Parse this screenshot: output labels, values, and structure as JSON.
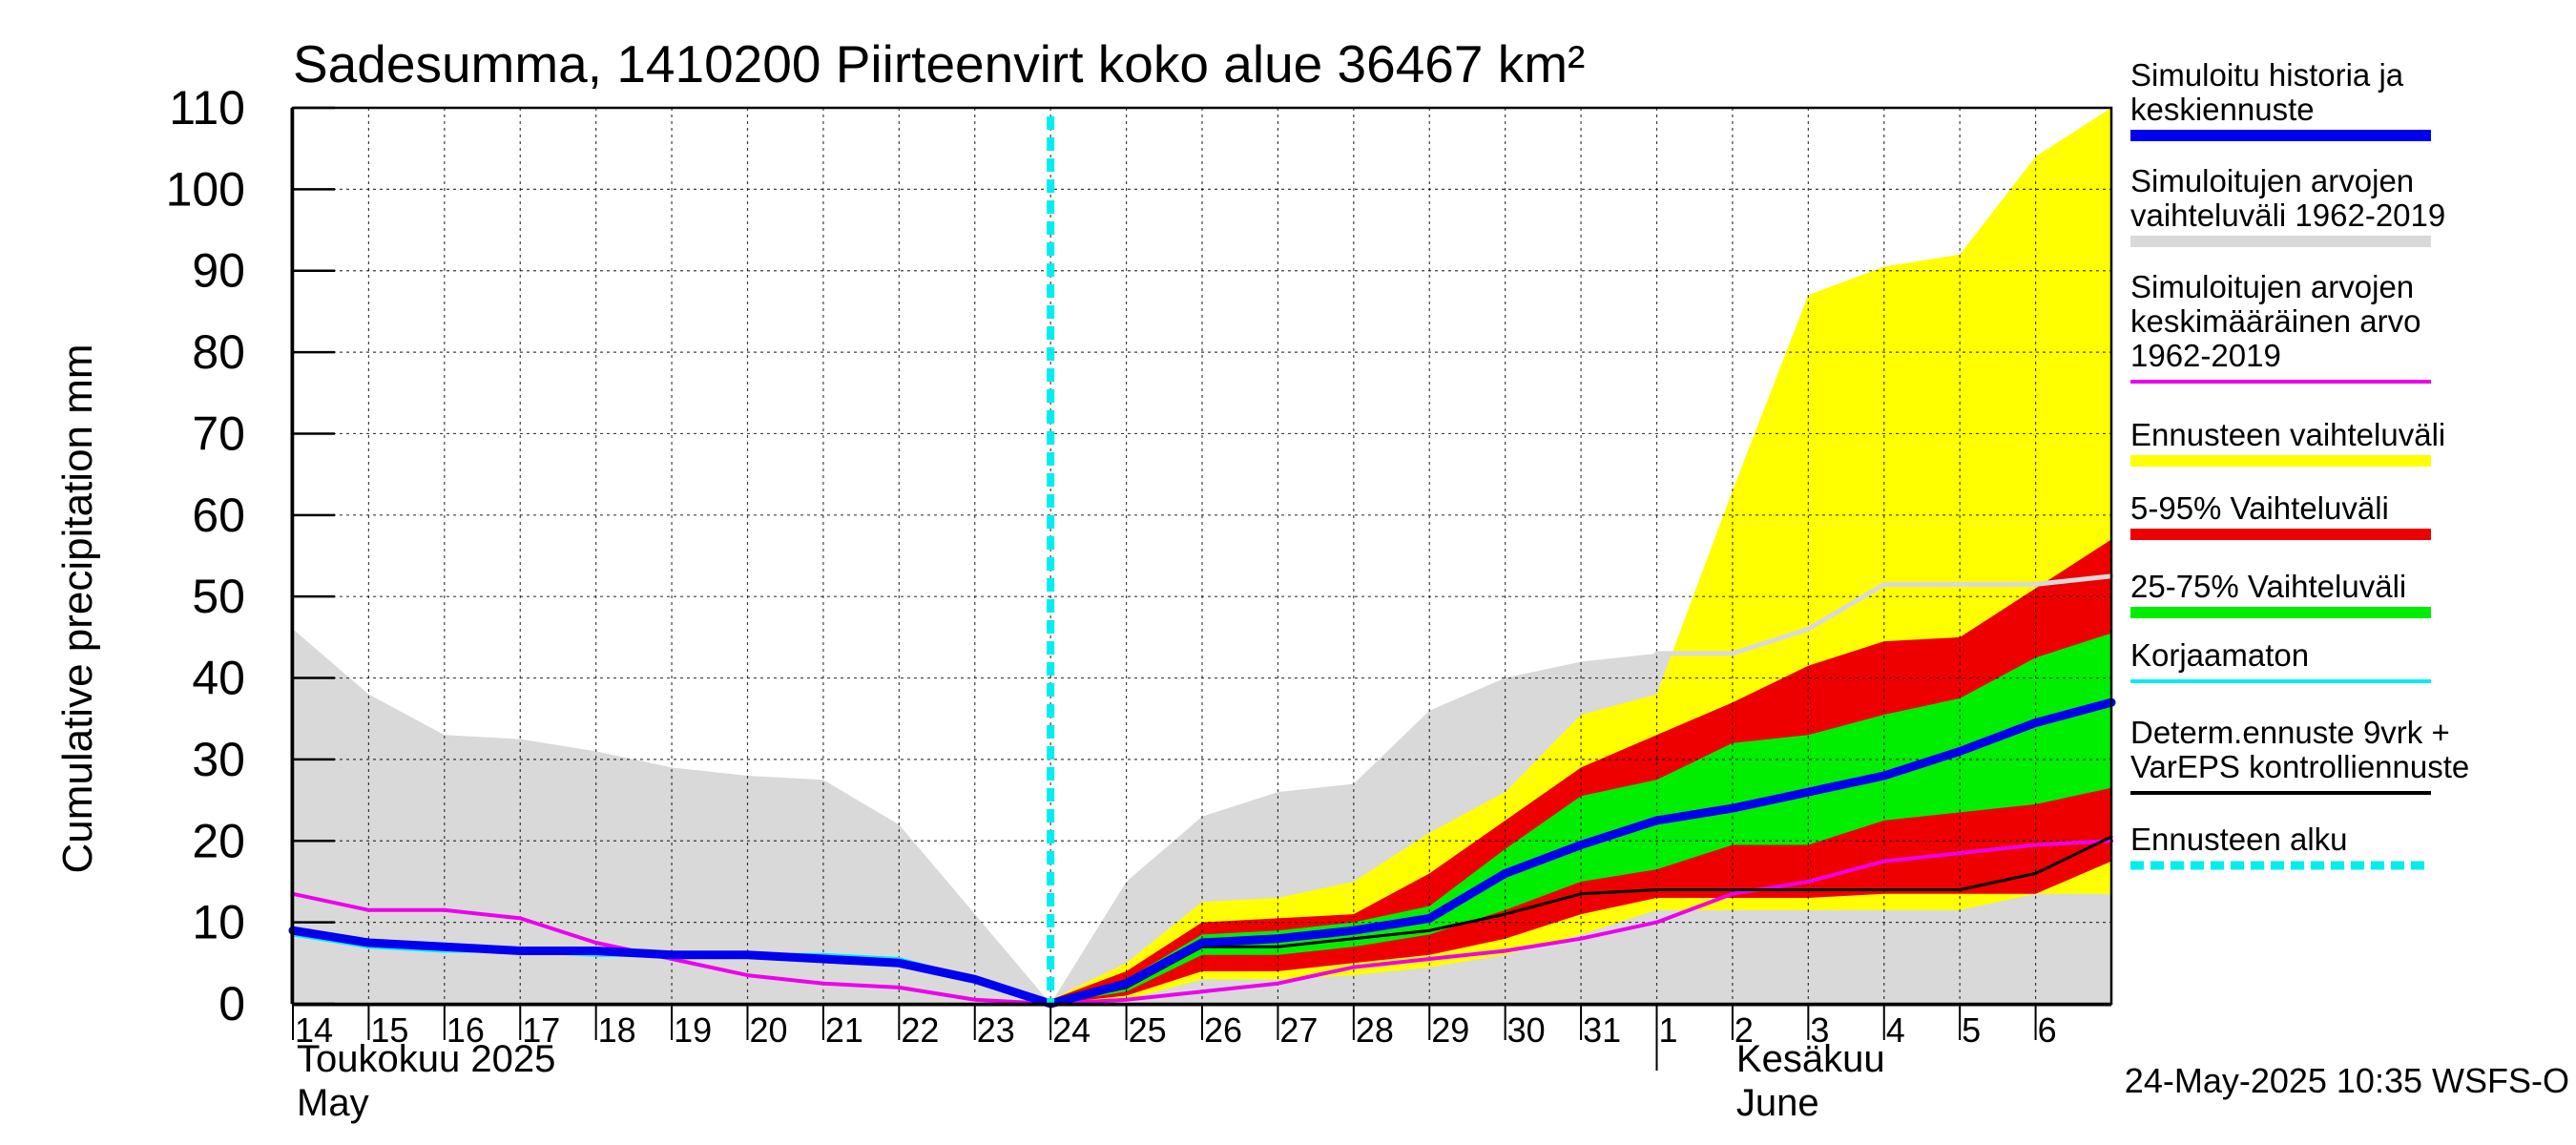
{
  "chart_data": {
    "type": "area",
    "title": "Sadesumma, 1410200 Piirteenvirt koko alue 36467 km²",
    "ylabel": "Cumulative precipitation   mm",
    "ylim": [
      0,
      110
    ],
    "y_ticks": [
      0,
      10,
      20,
      30,
      40,
      50,
      60,
      70,
      80,
      90,
      100,
      110
    ],
    "x_tick_labels": [
      "14",
      "15",
      "16",
      "17",
      "18",
      "19",
      "20",
      "21",
      "22",
      "23",
      "24",
      "25",
      "26",
      "27",
      "28",
      "29",
      "30",
      "31",
      "1",
      "2",
      "3",
      "4",
      "5",
      "6"
    ],
    "x_dates": [
      "2025-05-14",
      "2025-05-15",
      "2025-05-16",
      "2025-05-17",
      "2025-05-18",
      "2025-05-19",
      "2025-05-20",
      "2025-05-21",
      "2025-05-22",
      "2025-05-23",
      "2025-05-24",
      "2025-05-25",
      "2025-05-26",
      "2025-05-27",
      "2025-05-28",
      "2025-05-29",
      "2025-05-30",
      "2025-05-31",
      "2025-06-01",
      "2025-06-02",
      "2025-06-03",
      "2025-06-04",
      "2025-06-05",
      "2025-06-06"
    ],
    "x_start": "2025-05-14",
    "x_end": "2025-06-07",
    "month_labels": [
      {
        "line1": "Toukokuu  2025",
        "line2": "May",
        "anchor": "2025-05-14"
      },
      {
        "line1": "Kesäkuu",
        "line2": "June",
        "anchor": "2025-06-02"
      }
    ],
    "month_boundary": "2025-06-01",
    "forecast_start": "2025-05-24",
    "timestamp": "24-May-2025 10:35 WSFS-O",
    "grid": true,
    "legend_position": "right",
    "colors": {
      "history": "#0000ee",
      "hist_range": "#d9d9d9",
      "hist_mean": "#ee00ee",
      "ens_range": "#ffff00",
      "p5_95": "#ee0000",
      "p25_75": "#00ee00",
      "uncorrected": "#00eeee",
      "determ": "#000000",
      "forecast_start": "#00eeee"
    },
    "legend": [
      {
        "lines": [
          "Simuloitu historia ja",
          "keskiennuste"
        ],
        "color": "#0000ee",
        "style": "thick"
      },
      {
        "lines": [
          "Simuloitujen arvojen",
          "vaihteluväli 1962-2019"
        ],
        "color": "#d9d9d9",
        "style": "thick"
      },
      {
        "lines": [
          "Simuloitujen arvojen",
          "keskimääräinen arvo",
          "   1962-2019"
        ],
        "color": "#ee00ee",
        "style": "thin"
      },
      {
        "lines": [
          "Ennusteen vaihteluväli"
        ],
        "color": "#ffff00",
        "style": "thick"
      },
      {
        "lines": [
          "5-95% Vaihteluväli"
        ],
        "color": "#ee0000",
        "style": "thick"
      },
      {
        "lines": [
          "25-75% Vaihteluväli"
        ],
        "color": "#00ee00",
        "style": "thick"
      },
      {
        "lines": [
          "Korjaamaton"
        ],
        "color": "#00eeee",
        "style": "thin"
      },
      {
        "lines": [
          "Determ.ennuste 9vrk +",
          "VarEPS kontrolliennuste"
        ],
        "color": "#000000",
        "style": "thin"
      },
      {
        "lines": [
          "Ennusteen alku"
        ],
        "color": "#00eeee",
        "style": "dashed"
      }
    ],
    "series": {
      "hist_range": {
        "x": [
          "2025-05-14",
          "2025-05-15",
          "2025-05-16",
          "2025-05-17",
          "2025-05-18",
          "2025-05-19",
          "2025-05-20",
          "2025-05-21",
          "2025-05-22",
          "2025-05-23",
          "2025-05-24",
          "2025-05-25",
          "2025-05-26",
          "2025-05-27",
          "2025-05-28",
          "2025-05-29",
          "2025-05-30",
          "2025-05-31",
          "2025-06-01",
          "2025-06-02",
          "2025-06-03",
          "2025-06-04",
          "2025-06-05",
          "2025-06-06",
          "2025-06-07"
        ],
        "upper": [
          46,
          38,
          33,
          32.5,
          31,
          29,
          28,
          27.5,
          22,
          11,
          0,
          15,
          23,
          26,
          27,
          36,
          40,
          42,
          43,
          43,
          46,
          51,
          51,
          51,
          51
        ],
        "lower": [
          0,
          0,
          0,
          0,
          0,
          0,
          0,
          0,
          0,
          0,
          0,
          0,
          0,
          0,
          0,
          0,
          0,
          0,
          0,
          0,
          0,
          0,
          0,
          0,
          0
        ]
      },
      "hist_upper_line": {
        "x": [
          "2025-06-01",
          "2025-06-02",
          "2025-06-03",
          "2025-06-04",
          "2025-06-05",
          "2025-06-06",
          "2025-06-07"
        ],
        "values": [
          43,
          43,
          46,
          51.5,
          51.5,
          51.5,
          52.5
        ]
      },
      "ens_range": {
        "x": [
          "2025-05-24",
          "2025-05-25",
          "2025-05-26",
          "2025-05-27",
          "2025-05-28",
          "2025-05-29",
          "2025-05-30",
          "2025-05-31",
          "2025-06-01",
          "2025-06-02",
          "2025-06-03",
          "2025-06-04",
          "2025-06-05",
          "2025-06-06",
          "2025-06-07"
        ],
        "upper": [
          0.5,
          5,
          12.5,
          13,
          15,
          21,
          26,
          35.5,
          38,
          63,
          87,
          90.5,
          92,
          104,
          110
        ],
        "lower": [
          0,
          0.5,
          3,
          3,
          3.5,
          4.5,
          6,
          8.5,
          11.5,
          11.5,
          11.5,
          11.5,
          11.5,
          13.5,
          13.5
        ]
      },
      "p5_95": {
        "x": [
          "2025-05-24",
          "2025-05-25",
          "2025-05-26",
          "2025-05-27",
          "2025-05-28",
          "2025-05-29",
          "2025-05-30",
          "2025-05-31",
          "2025-06-01",
          "2025-06-02",
          "2025-06-03",
          "2025-06-04",
          "2025-06-05",
          "2025-06-06",
          "2025-06-07"
        ],
        "upper": [
          0.5,
          4,
          10,
          10.5,
          11,
          16,
          22.5,
          29,
          33,
          37,
          41.5,
          44.5,
          45,
          51,
          57
        ],
        "lower": [
          0,
          1,
          4,
          4,
          5,
          6,
          8,
          11,
          13,
          13,
          13,
          13.5,
          13.5,
          13.5,
          17.5
        ]
      },
      "p25_75": {
        "x": [
          "2025-05-24",
          "2025-05-25",
          "2025-05-26",
          "2025-05-27",
          "2025-05-28",
          "2025-05-29",
          "2025-05-30",
          "2025-05-31",
          "2025-06-01",
          "2025-06-02",
          "2025-06-03",
          "2025-06-04",
          "2025-06-05",
          "2025-06-06",
          "2025-06-07"
        ],
        "upper": [
          0.3,
          3,
          8.5,
          9,
          10,
          12,
          19,
          25.5,
          27.5,
          32,
          33,
          35.5,
          37.5,
          42.5,
          45.5
        ],
        "lower": [
          0,
          1.5,
          6,
          6,
          7,
          8.5,
          11.5,
          15,
          16.5,
          19.5,
          19.5,
          22.5,
          23.5,
          24.5,
          26.5
        ]
      },
      "hist_mean": {
        "x": [
          "2025-05-14",
          "2025-05-15",
          "2025-05-16",
          "2025-05-17",
          "2025-05-18",
          "2025-05-19",
          "2025-05-20",
          "2025-05-21",
          "2025-05-22",
          "2025-05-23",
          "2025-05-24",
          "2025-05-25",
          "2025-05-26",
          "2025-05-27",
          "2025-05-28",
          "2025-05-29",
          "2025-05-30",
          "2025-05-31",
          "2025-06-01",
          "2025-06-02",
          "2025-06-03",
          "2025-06-04",
          "2025-06-05",
          "2025-06-06",
          "2025-06-07"
        ],
        "values": [
          13.5,
          11.5,
          11.5,
          10.5,
          7.5,
          5.5,
          3.5,
          2.5,
          2,
          0.5,
          0,
          0.5,
          1.5,
          2.5,
          4.5,
          5.5,
          6.5,
          8,
          10,
          13.5,
          15,
          17.5,
          18.5,
          19.5,
          20
        ]
      },
      "uncorrected": {
        "x": [
          "2025-05-14",
          "2025-05-15",
          "2025-05-16",
          "2025-05-17",
          "2025-05-18",
          "2025-05-19",
          "2025-05-20",
          "2025-05-21",
          "2025-05-22",
          "2025-05-23",
          "2025-05-24"
        ],
        "values": [
          8.5,
          7,
          6.5,
          6.5,
          6,
          6,
          6,
          6,
          5.5,
          3,
          0
        ]
      },
      "determ": {
        "x": [
          "2025-05-24",
          "2025-05-25",
          "2025-05-26",
          "2025-05-27",
          "2025-05-28",
          "2025-05-29",
          "2025-05-30",
          "2025-05-31",
          "2025-06-01",
          "2025-06-02",
          "2025-06-03",
          "2025-06-04",
          "2025-06-05",
          "2025-06-06",
          "2025-06-07"
        ],
        "values": [
          0,
          2,
          7,
          7,
          8,
          9,
          11,
          13.5,
          14,
          14,
          14,
          14,
          14,
          16,
          20.5
        ]
      },
      "history": {
        "x": [
          "2025-05-14",
          "2025-05-15",
          "2025-05-16",
          "2025-05-17",
          "2025-05-18",
          "2025-05-19",
          "2025-05-20",
          "2025-05-21",
          "2025-05-22",
          "2025-05-23",
          "2025-05-24",
          "2025-05-25",
          "2025-05-26",
          "2025-05-27",
          "2025-05-28",
          "2025-05-29",
          "2025-05-30",
          "2025-05-31",
          "2025-06-01",
          "2025-06-02",
          "2025-06-03",
          "2025-06-04",
          "2025-06-05",
          "2025-06-06",
          "2025-06-07"
        ],
        "values": [
          9,
          7.5,
          7,
          6.5,
          6.5,
          6,
          6,
          5.5,
          5,
          3,
          0,
          2.5,
          7.5,
          8,
          9,
          10.5,
          16,
          19.5,
          22.5,
          24,
          26,
          28,
          31,
          34.5,
          37
        ]
      }
    }
  }
}
